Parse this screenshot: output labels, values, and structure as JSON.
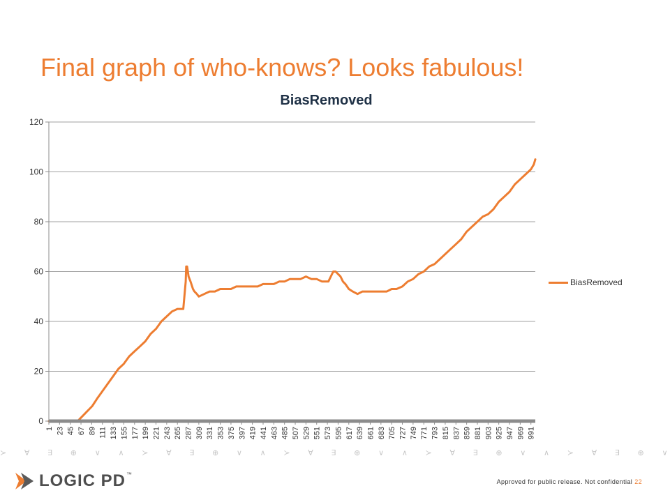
{
  "slide": {
    "title": "Final graph of who-knows? Looks fabulous!",
    "footer_text": "Approved for public release. Not confidential",
    "page_number": "22",
    "logo_text": "LOGIC PD",
    "logo_tm": "™",
    "pattern": "≻ ∀ ∃ ⊕ ∨ ∧ ≻ ∀ ∃ ⊕ ∨ ∧ ≻ ∀ ∃ ⊕ ∨ ∧ ≻ ∀ ∃ ⊕ ∨ ∧ ≻ ∀ ∃ ⊕ ∨ ∧ ≻ ∀ ∃ ⊕ ∨ ∧ ≻ ∀ ∃ ⊕ ∨ ∧ ≻ ∀ ∃ ⊕ ∨ ∧"
  },
  "colors": {
    "accent": "#ed7d31",
    "axis": "#8c8c8c",
    "grid": "#a0a0a0",
    "text": "#333333"
  },
  "chart_data": {
    "type": "line",
    "title": "BiasRemoved",
    "xlabel": "",
    "ylabel": "",
    "ylim": [
      0,
      120
    ],
    "yticks": [
      0,
      20,
      40,
      60,
      80,
      100,
      120
    ],
    "xlim": [
      1,
      1000
    ],
    "xticks": [
      1,
      23,
      45,
      67,
      89,
      111,
      133,
      155,
      177,
      199,
      221,
      243,
      265,
      287,
      309,
      331,
      353,
      375,
      397,
      419,
      441,
      463,
      485,
      507,
      529,
      551,
      573,
      595,
      617,
      639,
      661,
      683,
      705,
      727,
      749,
      771,
      793,
      815,
      837,
      859,
      881,
      903,
      925,
      947,
      969,
      991
    ],
    "grid": true,
    "legend": "right",
    "series": [
      {
        "name": "BiasRemoved",
        "color": "#ed7d31",
        "x": [
          1,
          45,
          55,
          60,
          65,
          70,
          75,
          80,
          90,
          100,
          111,
          122,
          133,
          144,
          155,
          166,
          177,
          188,
          199,
          210,
          221,
          232,
          243,
          254,
          265,
          277,
          282,
          283,
          285,
          288,
          292,
          297,
          300,
          305,
          309,
          320,
          331,
          342,
          353,
          364,
          375,
          386,
          397,
          408,
          419,
          430,
          441,
          452,
          463,
          474,
          485,
          496,
          507,
          518,
          529,
          540,
          551,
          562,
          570,
          575,
          580,
          585,
          590,
          595,
          600,
          605,
          610,
          617,
          625,
          635,
          645,
          655,
          665,
          675,
          685,
          695,
          705,
          715,
          727,
          738,
          749,
          760,
          771,
          782,
          793,
          804,
          815,
          826,
          837,
          848,
          859,
          870,
          881,
          892,
          903,
          914,
          925,
          936,
          947,
          958,
          969,
          980,
          991,
          997,
          1000
        ],
        "y": [
          0,
          0,
          0,
          0,
          1,
          2,
          3,
          4,
          6,
          9,
          12,
          15,
          18,
          21,
          23,
          26,
          28,
          30,
          32,
          35,
          37,
          40,
          42,
          44,
          45,
          45,
          56,
          62,
          62,
          58,
          56,
          53,
          52,
          51,
          50,
          51,
          52,
          52,
          53,
          53,
          53,
          54,
          54,
          54,
          54,
          54,
          55,
          55,
          55,
          56,
          56,
          57,
          57,
          57,
          58,
          57,
          57,
          56,
          56,
          56,
          58,
          60,
          60,
          59,
          58,
          56,
          55,
          53,
          52,
          51,
          52,
          52,
          52,
          52,
          52,
          52,
          53,
          53,
          54,
          56,
          57,
          59,
          60,
          62,
          63,
          65,
          67,
          69,
          71,
          73,
          76,
          78,
          80,
          82,
          83,
          85,
          88,
          90,
          92,
          95,
          97,
          99,
          101,
          103,
          105
        ]
      }
    ]
  }
}
